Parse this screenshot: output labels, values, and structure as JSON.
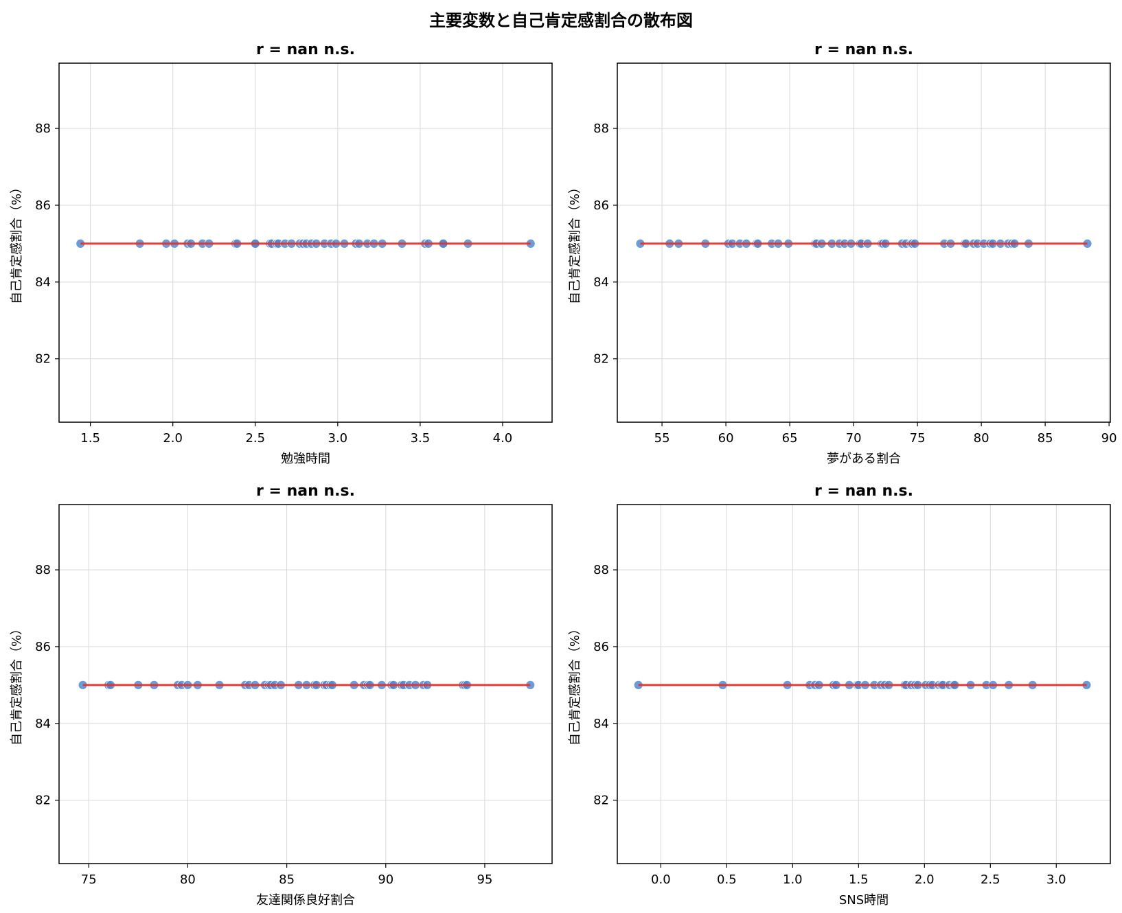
{
  "figure_title": "主要変数と自己肯定感割合の散布図",
  "colors": {
    "points": "#4a86d0",
    "fit_line": "#e8302d",
    "grid": "#d9d9d9",
    "frame": "#000000"
  },
  "chart_data": [
    {
      "type": "scatter",
      "title": "r = nan n.s.",
      "xlabel": "勉強時間",
      "ylabel": "自己肯定感割合（%）",
      "xlim": [
        1.31,
        4.3
      ],
      "ylim": [
        80.35,
        89.7
      ],
      "xticks": [
        1.5,
        2.0,
        2.5,
        3.0,
        3.5,
        4.0
      ],
      "xtick_labels": [
        "1.5",
        "2.0",
        "2.5",
        "3.0",
        "3.5",
        "4.0"
      ],
      "yticks": [
        82,
        84,
        86,
        88
      ],
      "ytick_labels": [
        "82",
        "84",
        "86",
        "88"
      ],
      "grid": true,
      "x": [
        1.44,
        1.8,
        1.96,
        2.01,
        2.09,
        2.11,
        2.18,
        2.22,
        2.38,
        2.39,
        2.5,
        2.5,
        2.59,
        2.6,
        2.63,
        2.64,
        2.68,
        2.72,
        2.77,
        2.79,
        2.81,
        2.84,
        2.87,
        2.92,
        2.96,
        2.99,
        3.04,
        3.11,
        3.13,
        3.18,
        3.22,
        3.27,
        3.39,
        3.53,
        3.55,
        3.64,
        3.64,
        3.79,
        4.17
      ],
      "y": [
        85,
        85,
        85,
        85,
        85,
        85,
        85,
        85,
        85,
        85,
        85,
        85,
        85,
        85,
        85,
        85,
        85,
        85,
        85,
        85,
        85,
        85,
        85,
        85,
        85,
        85,
        85,
        85,
        85,
        85,
        85,
        85,
        85,
        85,
        85,
        85,
        85,
        85,
        85
      ],
      "fit_line": {
        "x": [
          1.44,
          4.17
        ],
        "y": [
          85,
          85
        ]
      }
    },
    {
      "type": "scatter",
      "title": "r = nan n.s.",
      "xlabel": "夢がある割合",
      "ylabel": "自己肯定感割合（%）",
      "xlim": [
        51.5,
        90.1
      ],
      "ylim": [
        80.35,
        89.7
      ],
      "xticks": [
        55,
        60,
        65,
        70,
        75,
        80,
        85,
        90
      ],
      "xtick_labels": [
        "55",
        "60",
        "65",
        "70",
        "75",
        "80",
        "85",
        "90"
      ],
      "grid": true,
      "yticks": [
        82,
        84,
        86,
        88
      ],
      "ytick_labels": [
        "82",
        "84",
        "86",
        "88"
      ],
      "x": [
        53.3,
        55.6,
        56.3,
        58.4,
        60.2,
        60.5,
        61.1,
        61.6,
        62.4,
        62.5,
        63.6,
        64.1,
        64.9,
        67.0,
        67.1,
        67.5,
        68.3,
        68.9,
        69.3,
        69.8,
        70.5,
        70.6,
        71.1,
        72.2,
        72.3,
        72.5,
        73.8,
        74.1,
        74.5,
        74.6,
        74.8,
        77.1,
        77.6,
        78.7,
        78.8,
        79.4,
        79.7,
        80.2,
        80.7,
        80.9,
        81.5,
        82.1,
        82.4,
        82.6,
        83.7,
        88.3
      ],
      "y": [
        85,
        85,
        85,
        85,
        85,
        85,
        85,
        85,
        85,
        85,
        85,
        85,
        85,
        85,
        85,
        85,
        85,
        85,
        85,
        85,
        85,
        85,
        85,
        85,
        85,
        85,
        85,
        85,
        85,
        85,
        85,
        85,
        85,
        85,
        85,
        85,
        85,
        85,
        85,
        85,
        85,
        85,
        85,
        85,
        85,
        85
      ],
      "fit_line": {
        "x": [
          53.3,
          88.3
        ],
        "y": [
          85,
          85
        ]
      }
    },
    {
      "type": "scatter",
      "title": "r = nan n.s.",
      "xlabel": "友達関係良好割合",
      "ylabel": "自己肯定感割合（%）",
      "xlim": [
        73.5,
        98.4
      ],
      "ylim": [
        80.35,
        89.7
      ],
      "xticks": [
        75,
        80,
        85,
        90,
        95
      ],
      "xtick_labels": [
        "75",
        "80",
        "85",
        "90",
        "95"
      ],
      "grid": true,
      "yticks": [
        82,
        84,
        86,
        88
      ],
      "ytick_labels": [
        "82",
        "84",
        "86",
        "88"
      ],
      "x": [
        74.7,
        76.0,
        76.1,
        77.5,
        78.3,
        79.5,
        79.7,
        80.0,
        80.5,
        81.6,
        82.9,
        83.1,
        83.4,
        83.9,
        84.1,
        84.2,
        84.4,
        84.7,
        85.6,
        86.0,
        86.4,
        86.5,
        86.9,
        87.0,
        87.2,
        87.3,
        88.4,
        88.9,
        89.1,
        89.2,
        89.8,
        90.3,
        90.4,
        90.8,
        90.9,
        91.2,
        91.5,
        91.9,
        92.1,
        93.9,
        94.0,
        94.1,
        97.3
      ],
      "y": [
        85,
        85,
        85,
        85,
        85,
        85,
        85,
        85,
        85,
        85,
        85,
        85,
        85,
        85,
        85,
        85,
        85,
        85,
        85,
        85,
        85,
        85,
        85,
        85,
        85,
        85,
        85,
        85,
        85,
        85,
        85,
        85,
        85,
        85,
        85,
        85,
        85,
        85,
        85,
        85,
        85,
        85,
        85
      ],
      "fit_line": {
        "x": [
          74.7,
          97.3
        ],
        "y": [
          85,
          85
        ]
      }
    },
    {
      "type": "scatter",
      "title": "r = nan n.s.",
      "xlabel": "SNS時間",
      "ylabel": "自己肯定感割合（%）",
      "xlim": [
        -0.33,
        3.41
      ],
      "ylim": [
        80.35,
        89.7
      ],
      "xticks": [
        0.0,
        0.5,
        1.0,
        1.5,
        2.0,
        2.5,
        3.0
      ],
      "xtick_labels": [
        "0.0",
        "0.5",
        "1.0",
        "1.5",
        "2.0",
        "2.5",
        "3.0"
      ],
      "grid": true,
      "yticks": [
        82,
        84,
        86,
        88
      ],
      "ytick_labels": [
        "82",
        "84",
        "86",
        "88"
      ],
      "x": [
        -0.17,
        0.47,
        0.96,
        1.13,
        1.17,
        1.2,
        1.31,
        1.33,
        1.43,
        1.49,
        1.5,
        1.55,
        1.62,
        1.67,
        1.7,
        1.73,
        1.85,
        1.86,
        1.9,
        1.93,
        1.95,
        2.01,
        2.04,
        2.06,
        2.11,
        2.13,
        2.14,
        2.19,
        2.22,
        2.23,
        2.35,
        2.47,
        2.52,
        2.64,
        2.82,
        3.23
      ],
      "y": [
        85,
        85,
        85,
        85,
        85,
        85,
        85,
        85,
        85,
        85,
        85,
        85,
        85,
        85,
        85,
        85,
        85,
        85,
        85,
        85,
        85,
        85,
        85,
        85,
        85,
        85,
        85,
        85,
        85,
        85,
        85,
        85,
        85,
        85,
        85,
        85
      ],
      "fit_line": {
        "x": [
          -0.17,
          3.23
        ],
        "y": [
          85,
          85
        ]
      }
    }
  ]
}
